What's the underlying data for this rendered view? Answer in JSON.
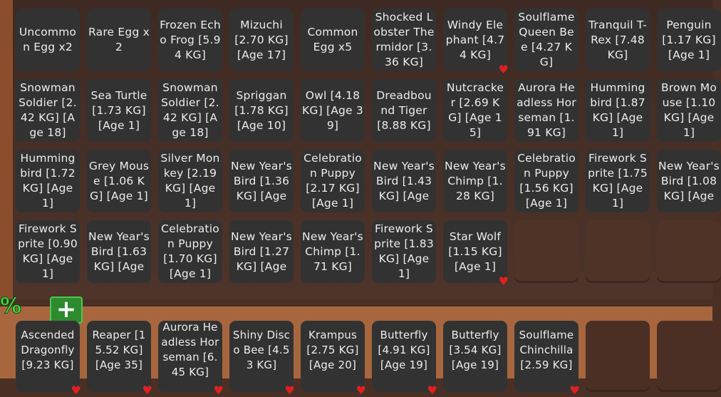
{
  "inventory": {
    "rows": [
      [
        {
          "label": "Uncommon Egg x2"
        },
        {
          "label": "Rare Egg x2"
        },
        {
          "label": "Frozen Echo Frog [5.94 KG]"
        },
        {
          "label": "Mizuchi [2.70 KG] [Age 17]"
        },
        {
          "label": "Common Egg x5"
        },
        {
          "label": "Shocked Lobster Thermidor [3.36 KG]"
        },
        {
          "label": "Windy Elephant [4.74 KG]",
          "favorite": true
        },
        {
          "label": "Soulflame Queen Bee [4.27 KG]"
        },
        {
          "label": "Tranquil T-Rex [7.48 KG]"
        },
        {
          "label": "Penguin [1.17 KG] [Age 1]"
        }
      ],
      [
        {
          "label": "Snowman Soldier [2.42 KG] [Age 18]"
        },
        {
          "label": "Sea Turtle [1.73 KG] [Age 1]"
        },
        {
          "label": "Snowman Soldier [2.42 KG] [Age 18]"
        },
        {
          "label": "Spriggan [1.78 KG] [Age 10]"
        },
        {
          "label": "Owl [4.18 KG] [Age 39]"
        },
        {
          "label": "Dreadbound Tiger [8.88 KG]"
        },
        {
          "label": "Nutcracker [2.69 KG] [Age 15]"
        },
        {
          "label": "Aurora Headless Horseman [1.91 KG]"
        },
        {
          "label": "Hummingbird [1.87 KG] [Age 1]"
        },
        {
          "label": "Brown Mouse [1.10 KG] [Age 1]"
        }
      ],
      [
        {
          "label": "Hummingbird [1.72 KG] [Age 1]"
        },
        {
          "label": "Grey Mouse [1.06 KG] [Age 1]"
        },
        {
          "label": "Silver Monkey [2.19 KG] [Age 1]"
        },
        {
          "label": "New Year's Bird [1.36 KG] [Age"
        },
        {
          "label": "Celebration Puppy [2.17 KG] [Age 1]"
        },
        {
          "label": "New Year's Bird [1.43 KG] [Age"
        },
        {
          "label": "New Year's Chimp [1.28 KG]"
        },
        {
          "label": "Celebration Puppy [1.56 KG] [Age 1]"
        },
        {
          "label": "Firework Sprite [1.75 KG] [Age 1]"
        },
        {
          "label": "New Year's Bird [1.08 KG] [Age"
        }
      ],
      [
        {
          "label": "Firework Sprite [0.90 KG] [Age 1]"
        },
        {
          "label": "New Year's Bird [1.63 KG] [Age"
        },
        {
          "label": "Celebration Puppy [1.70 KG] [Age 1]"
        },
        {
          "label": "New Year's Bird [1.27 KG] [Age"
        },
        {
          "label": "New Year's Chimp [1.71 KG]"
        },
        {
          "label": "Firework Sprite [1.83 KG] [Age 1]"
        },
        {
          "label": "Star Wolf [1.15 KG] [Age 1]",
          "favorite": true
        }
      ]
    ]
  },
  "hotbar": {
    "percent_label": "%",
    "add_label": "+",
    "items": [
      {
        "label": "Ascended Dragonfly [9.23 KG]",
        "favorite": true
      },
      {
        "label": "Reaper [15.52 KG] [Age 35]",
        "favorite": true
      },
      {
        "label": "Aurora Headless Horseman [6.45 KG]",
        "favorite": true
      },
      {
        "label": "Shiny Disco Bee [4.53 KG]",
        "favorite": true
      },
      {
        "label": "Krampus [2.75 KG] [Age 20]",
        "favorite": true
      },
      {
        "label": "Butterfly [4.91 KG] [Age 19]",
        "favorite": true
      },
      {
        "label": "Butterfly [3.54 KG] [Age 19]"
      },
      {
        "label": "Soulflame Chinchilla [2.59 KG]",
        "favorite": true
      }
    ]
  },
  "colors": {
    "tile": "#333232",
    "favorite_heart": "#e02020",
    "accent_green": "#3fdc3f"
  }
}
